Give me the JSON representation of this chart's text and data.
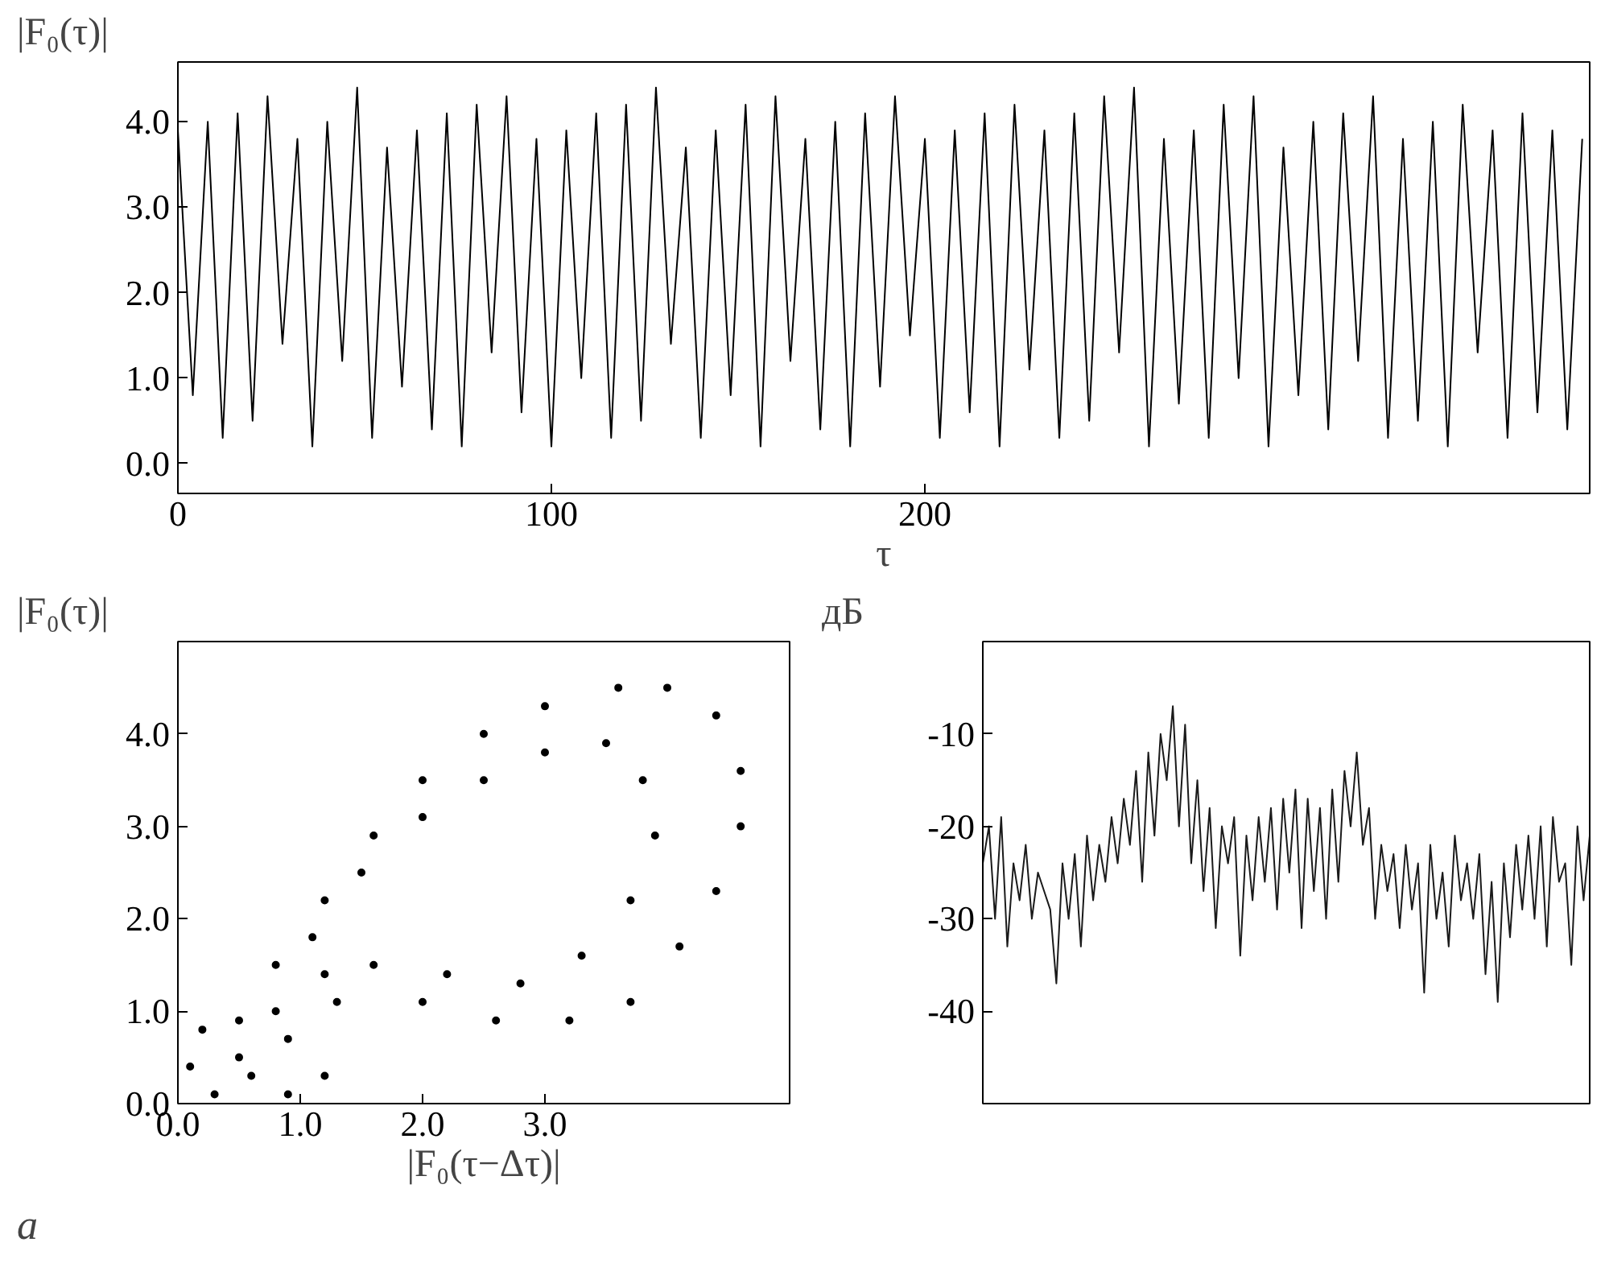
{
  "chart_data": [
    {
      "type": "line",
      "ylabel": "|F₀(τ)|",
      "xlabel": "τ",
      "xlim": [
        0,
        378
      ],
      "ylim": [
        -0.35,
        4.7
      ],
      "grid": false,
      "xticks": [
        0,
        100,
        200
      ],
      "yticks": [
        {
          "value": 0,
          "label": "0.0"
        },
        {
          "value": 1,
          "label": "1.0"
        },
        {
          "value": 2,
          "label": "2.0"
        },
        {
          "value": 3,
          "label": "3.0"
        },
        {
          "value": 4,
          "label": "4.0"
        }
      ],
      "series": [
        {
          "color": "#000000",
          "x": [
            0,
            4,
            8,
            12,
            16,
            20,
            24,
            28,
            32,
            36,
            40,
            44,
            48,
            52,
            56,
            60,
            64,
            68,
            72,
            76,
            80,
            84,
            88,
            92,
            96,
            100,
            104,
            108,
            112,
            116,
            120,
            124,
            128,
            132,
            136,
            140,
            144,
            148,
            152,
            156,
            160,
            164,
            168,
            172,
            176,
            180,
            184,
            188,
            192,
            196,
            200,
            204,
            208,
            212,
            216,
            220,
            224,
            228,
            232,
            236,
            240,
            244,
            248,
            252,
            256,
            260,
            264,
            268,
            272,
            276,
            280,
            284,
            288,
            292,
            296,
            300,
            304,
            308,
            312,
            316,
            320,
            324,
            328,
            332,
            336,
            340,
            344,
            348,
            352,
            356,
            360,
            364,
            368,
            372,
            376
          ],
          "values": [
            3.9,
            0.8,
            4.0,
            0.3,
            4.1,
            0.5,
            4.3,
            1.4,
            3.8,
            0.2,
            4.0,
            1.2,
            4.4,
            0.3,
            3.7,
            0.9,
            3.9,
            0.4,
            4.1,
            0.2,
            4.2,
            1.3,
            4.3,
            0.6,
            3.8,
            0.2,
            3.9,
            1.0,
            4.1,
            0.3,
            4.2,
            0.5,
            4.4,
            1.4,
            3.7,
            0.3,
            3.9,
            0.8,
            4.2,
            0.2,
            4.3,
            1.2,
            3.8,
            0.4,
            4.0,
            0.2,
            4.1,
            0.9,
            4.3,
            1.5,
            3.8,
            0.3,
            3.9,
            0.6,
            4.1,
            0.2,
            4.2,
            1.1,
            3.9,
            0.3,
            4.1,
            0.5,
            4.3,
            1.3,
            4.4,
            0.2,
            3.8,
            0.7,
            3.9,
            0.3,
            4.2,
            1.0,
            4.3,
            0.2,
            3.7,
            0.8,
            4.0,
            0.4,
            4.1,
            1.2,
            4.3,
            0.3,
            3.8,
            0.5,
            4.0,
            0.2,
            4.2,
            1.3,
            3.9,
            0.3,
            4.1,
            0.6,
            3.9,
            0.4,
            3.8
          ]
        }
      ]
    },
    {
      "type": "scatter",
      "ylabel": "|F₀(τ)|",
      "xlabel": "|F₀(τ−Δτ)|",
      "xlim": [
        0,
        5.0
      ],
      "ylim": [
        0,
        5.0
      ],
      "grid": false,
      "marker": "circle",
      "xticks": [
        {
          "value": 0,
          "label": "0.0"
        },
        {
          "value": 1,
          "label": "1.0"
        },
        {
          "value": 2,
          "label": "2.0"
        },
        {
          "value": 3,
          "label": "3.0"
        }
      ],
      "yticks": [
        {
          "value": 0,
          "label": "0.0"
        },
        {
          "value": 1,
          "label": "1.0"
        },
        {
          "value": 2,
          "label": "2.0"
        },
        {
          "value": 3,
          "label": "3.0"
        },
        {
          "value": 4,
          "label": "4.0"
        }
      ],
      "annotations": [
        "a"
      ],
      "series": [
        {
          "color": "#000000",
          "x": [
            0.1,
            0.3,
            0.6,
            0.5,
            0.8,
            1.2,
            1.6,
            2.0,
            2.5,
            3.0,
            3.6,
            4.0,
            4.4,
            4.6,
            4.6,
            4.4,
            4.1,
            3.7,
            3.2,
            2.6,
            2.0,
            1.3,
            1.2,
            0.9,
            0.8,
            1.1,
            1.5,
            2.0,
            2.5,
            3.0,
            3.5,
            3.8,
            3.9,
            3.7,
            3.3,
            2.8,
            2.2,
            1.6,
            1.2,
            0.9,
            0.5,
            0.2
          ],
          "values": [
            0.4,
            0.1,
            0.3,
            0.9,
            1.5,
            2.2,
            2.9,
            3.5,
            4.0,
            4.3,
            4.5,
            4.5,
            4.2,
            3.6,
            3.0,
            2.3,
            1.7,
            1.1,
            0.9,
            0.9,
            1.1,
            1.1,
            0.3,
            0.1,
            1.0,
            1.8,
            2.5,
            3.1,
            3.5,
            3.8,
            3.9,
            3.5,
            2.9,
            2.2,
            1.6,
            1.3,
            1.4,
            1.5,
            1.4,
            0.7,
            0.5,
            0.8
          ]
        }
      ]
    },
    {
      "type": "line",
      "ylabel": "дБ",
      "ylim": [
        -50,
        0
      ],
      "grid": false,
      "tick_labels": "y",
      "yticks": [
        {
          "value": -40,
          "label": "-40"
        },
        {
          "value": -30,
          "label": "-30"
        },
        {
          "value": -20,
          "label": "-20"
        },
        {
          "value": -10,
          "label": "-10"
        }
      ],
      "categories": [
        null,
        null,
        null,
        null,
        null,
        null,
        null,
        null,
        null,
        null,
        null,
        null,
        null,
        null,
        null,
        null,
        null,
        null,
        null,
        null,
        null,
        null,
        null,
        null,
        null,
        null,
        null,
        null,
        null,
        null,
        null,
        null,
        null,
        null,
        null,
        null,
        null,
        null,
        null,
        null,
        null,
        null,
        null,
        null,
        null,
        null,
        null,
        null,
        null,
        null,
        null,
        null,
        null,
        null,
        null,
        null,
        null,
        null,
        null,
        null,
        null,
        null,
        null,
        null,
        null,
        null,
        null,
        null,
        null,
        null,
        null,
        null,
        null,
        null,
        null,
        null,
        null,
        null,
        null,
        null,
        null,
        null,
        null,
        null,
        null,
        null,
        null,
        null,
        null,
        null,
        null,
        null,
        null,
        null,
        null,
        null,
        null,
        null,
        null,
        null
      ],
      "series": [
        {
          "color": "#1a1a1a",
          "values": [
            -24,
            -20,
            -30,
            -19,
            -33,
            -24,
            -28,
            -22,
            -30,
            -25,
            -27,
            -29,
            -37,
            -24,
            -30,
            -23,
            -33,
            -21,
            -28,
            -22,
            -26,
            -19,
            -24,
            -17,
            -22,
            -14,
            -26,
            -12,
            -21,
            -10,
            -15,
            -7,
            -20,
            -9,
            -24,
            -15,
            -27,
            -18,
            -31,
            -20,
            -24,
            -19,
            -34,
            -21,
            -28,
            -19,
            -26,
            -18,
            -29,
            -17,
            -25,
            -16,
            -31,
            -17,
            -27,
            -18,
            -30,
            -16,
            -26,
            -14,
            -20,
            -12,
            -22,
            -18,
            -30,
            -22,
            -27,
            -23,
            -31,
            -22,
            -29,
            -24,
            -38,
            -22,
            -30,
            -25,
            -33,
            -21,
            -28,
            -24,
            -30,
            -23,
            -36,
            -26,
            -39,
            -24,
            -32,
            -22,
            -29,
            -21,
            -30,
            -20,
            -33,
            -19,
            -26,
            -24,
            -35,
            -20,
            -28,
            -21
          ]
        }
      ]
    }
  ]
}
